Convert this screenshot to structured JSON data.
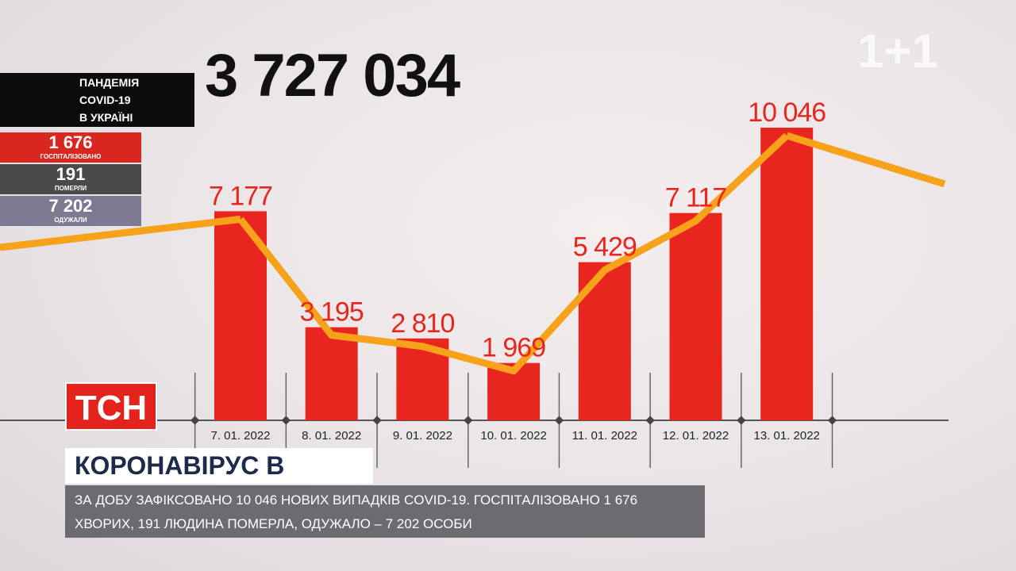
{
  "chart_data": {
    "type": "bar",
    "categories": [
      "7. 01. 2022",
      "8. 01. 2022",
      "9. 01. 2022",
      "10. 01. 2022",
      "11. 01. 2022",
      "12. 01. 2022",
      "13. 01. 2022"
    ],
    "values": [
      7177,
      3195,
      2810,
      1969,
      5429,
      7117,
      10046
    ],
    "value_labels": [
      "7 177",
      "3 195",
      "2 810",
      "1 969",
      "5 429",
      "7 117",
      "10 046"
    ],
    "color": "#e8251f",
    "line_color": "#f7a21b"
  },
  "total": "3 727 034",
  "panel_title": [
    "ПАНДЕМІЯ",
    "COVID-19",
    "В УКРАЇНІ"
  ],
  "stats": [
    {
      "value": "1 676",
      "label": "ГОСПІТАЛІЗОВАНО"
    },
    {
      "value": "191",
      "label": "ПОМЕРЛИ"
    },
    {
      "value": "7 202",
      "label": "ОДУЖАЛИ"
    }
  ],
  "channel_logo": "1+1",
  "show_logo": "ТСН",
  "headline": "КОРОНАВІРУС В УКРАЇНІ",
  "ticker": "ЗА ДОБУ ЗАФІКСОВАНО 10 046 НОВИХ ВИПАДКІВ COVID-19. ГОСПІТАЛІЗОВАНО 1 676 ХВОРИХ, 191 ЛЮДИНА ПОМЕРЛА, ОДУЖАЛО – 7 202 ОСОБИ"
}
